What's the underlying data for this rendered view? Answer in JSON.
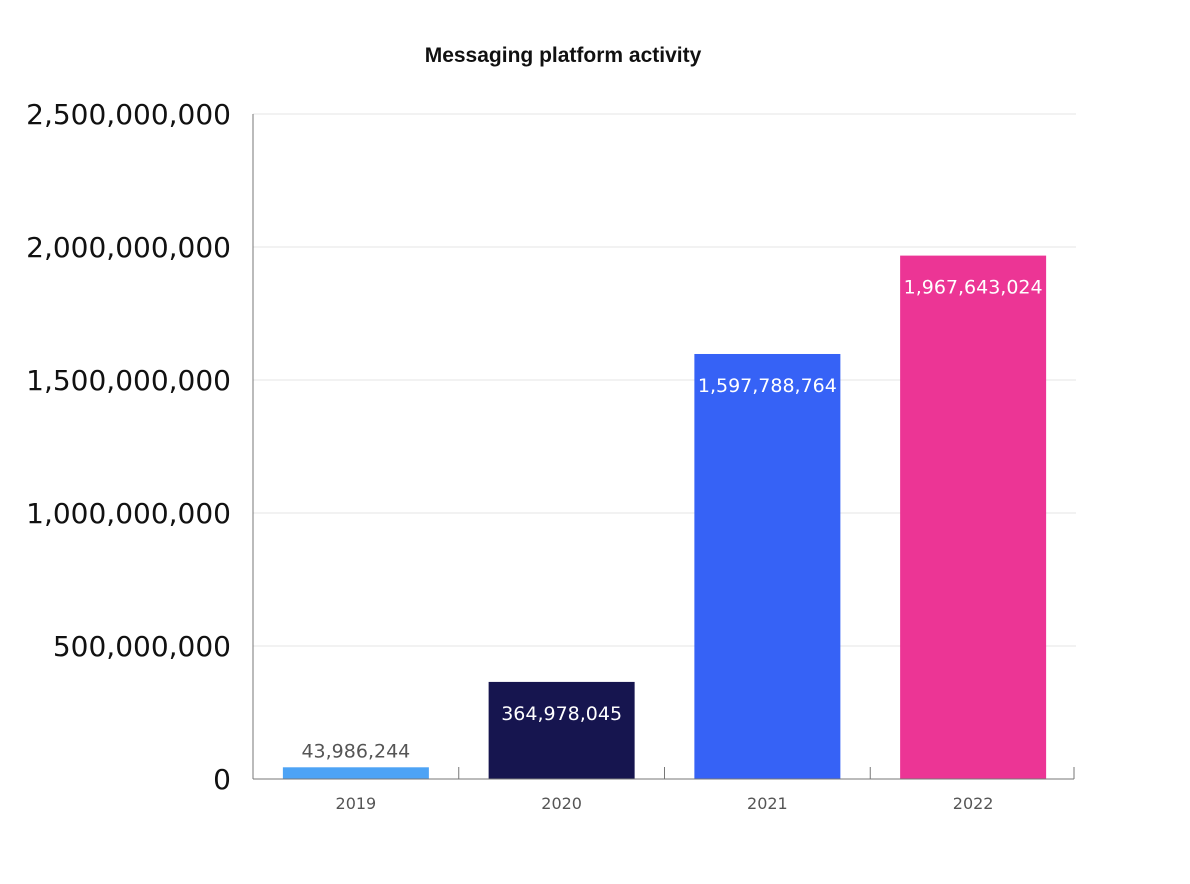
{
  "chart_data": {
    "type": "bar",
    "title": "Messaging platform activity",
    "categories": [
      "2019",
      "2020",
      "2021",
      "2022"
    ],
    "values": [
      43986244,
      364978045,
      1597788764,
      1967643024
    ],
    "value_labels": [
      "43,986,244",
      "364,978,045",
      "1,597,788,764",
      "1,967,643,024"
    ],
    "bar_colors": [
      "#4da3f5",
      "#16154f",
      "#3662f6",
      "#ec3595"
    ],
    "label_colors": [
      "#555555",
      "#ffffff",
      "#ffffff",
      "#ffffff"
    ],
    "label_position": [
      "above",
      "inside",
      "inside",
      "inside"
    ],
    "ylim": [
      0,
      2500000000
    ],
    "yticks": [
      0,
      500000000,
      1000000000,
      1500000000,
      2000000000,
      2500000000
    ],
    "ytick_labels": [
      "0",
      "500,000,000",
      "1,000,000,000",
      "1,500,000,000",
      "2,000,000,000",
      "2,500,000,000"
    ],
    "xlabel": "",
    "ylabel": "",
    "grid": true,
    "legend": "none"
  }
}
